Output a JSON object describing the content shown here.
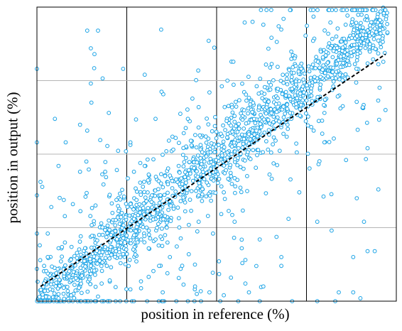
{
  "chart_data": {
    "type": "scatter",
    "title": "",
    "xlabel": "position in reference (%)",
    "ylabel": "position in output (%)",
    "xlim": [
      0,
      100
    ],
    "ylim": [
      0,
      100
    ],
    "grid": true,
    "legend": "none",
    "series": [
      {
        "marker_color": "#1aa3e6",
        "points": [
          [
            14,
            92
          ],
          [
            17,
            92
          ],
          [
            16,
            84
          ],
          [
            15,
            86
          ],
          [
            24,
            79
          ],
          [
            15,
            74
          ],
          [
            30,
            77
          ],
          [
            33,
            62
          ],
          [
            20,
            64
          ],
          [
            12,
            60
          ],
          [
            14,
            58
          ],
          [
            5,
            62
          ],
          [
            8,
            54
          ],
          [
            6,
            46
          ],
          [
            4,
            32
          ],
          [
            3,
            23
          ],
          [
            2,
            12
          ],
          [
            6,
            18
          ],
          [
            3,
            15
          ],
          [
            60,
            95
          ],
          [
            63,
            94
          ],
          [
            53,
            75
          ],
          [
            48,
            71
          ],
          [
            42,
            62
          ],
          [
            45,
            66
          ],
          [
            68,
            60
          ],
          [
            77,
            58
          ],
          [
            80,
            54
          ],
          [
            97,
            65
          ],
          [
            80,
            64
          ],
          [
            86,
            48
          ],
          [
            92,
            52
          ],
          [
            89,
            35
          ],
          [
            95,
            38
          ],
          [
            91,
            27
          ],
          [
            94,
            17
          ],
          [
            92,
            17
          ],
          [
            88,
            15
          ],
          [
            88,
            3
          ],
          [
            84,
            3
          ],
          [
            82,
            24
          ],
          [
            78,
            27
          ],
          [
            73,
            37
          ],
          [
            70,
            28
          ],
          [
            68,
            15
          ],
          [
            68,
            12
          ],
          [
            63,
            5
          ],
          [
            58,
            14
          ],
          [
            58,
            6
          ],
          [
            59,
            3
          ],
          [
            54,
            8
          ],
          [
            52,
            2
          ],
          [
            48,
            3
          ],
          [
            44,
            5
          ],
          [
            40,
            11
          ],
          [
            37,
            15
          ],
          [
            34,
            12
          ],
          [
            35,
            3
          ],
          [
            33,
            21
          ],
          [
            28,
            20
          ],
          [
            22,
            17
          ],
          [
            24,
            16
          ],
          [
            32,
            36
          ],
          [
            40,
            34
          ],
          [
            45,
            36
          ],
          [
            52,
            37
          ],
          [
            57,
            18
          ],
          [
            62,
            21
          ],
          [
            55,
            27
          ],
          [
            49,
            23
          ],
          [
            45,
            27
          ],
          [
            37,
            34
          ],
          [
            27,
            28
          ],
          [
            30,
            46
          ],
          [
            26,
            54
          ],
          [
            36,
            51
          ],
          [
            43,
            53
          ],
          [
            47,
            56
          ],
          [
            55,
            61
          ],
          [
            60,
            58
          ],
          [
            67,
            69
          ],
          [
            72,
            80
          ],
          [
            74,
            73
          ],
          [
            19,
            44
          ],
          [
            21,
            30
          ],
          [
            10,
            33
          ],
          [
            12,
            44
          ],
          [
            27,
            44
          ],
          [
            15,
            12
          ],
          [
            18,
            6
          ],
          [
            26,
            4
          ],
          [
            27,
            0
          ],
          [
            35,
            0
          ],
          [
            42,
            0
          ],
          [
            51,
            0
          ],
          [
            56,
            0
          ],
          [
            62,
            0
          ],
          [
            71,
            0
          ],
          [
            78,
            0
          ],
          [
            83,
            0
          ],
          [
            90,
            1
          ],
          [
            6,
            1
          ],
          [
            10,
            0
          ],
          [
            18,
            0
          ],
          [
            0,
            36
          ],
          [
            0,
            54
          ],
          [
            0,
            79
          ],
          [
            0,
            23
          ],
          [
            0,
            11
          ]
        ],
        "trend": "dense band around y = x"
      },
      {
        "name": "",
        "type": "line",
        "style": "dashed",
        "color": "#000000",
        "x": [
          1,
          97
        ],
        "y": [
          5,
          84
        ]
      }
    ],
    "dense_band": {
      "from": [
        0,
        0
      ],
      "to": [
        97,
        95
      ],
      "approx_points": 1400
    }
  }
}
